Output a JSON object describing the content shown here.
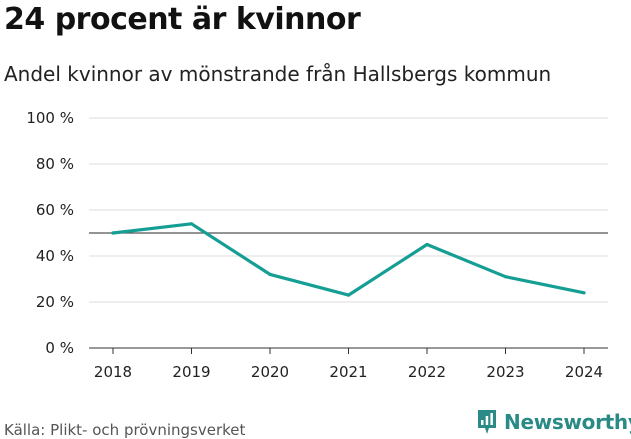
{
  "title": "24 procent är kvinnor",
  "subtitle": "Andel kvinnor av mönstrande från Hallsbergs kommun",
  "source": "Källa: Plikt- och prövningsverket",
  "brand": {
    "name": "Newsworthy",
    "icon": "newsworthy-logo-icon",
    "color": "#2a8a86"
  },
  "chart_data": {
    "type": "line",
    "title": "24 procent är kvinnor",
    "subtitle": "Andel kvinnor av mönstrande från Hallsbergs kommun",
    "xlabel": "",
    "ylabel": "",
    "categories": [
      "2018",
      "2019",
      "2020",
      "2021",
      "2022",
      "2023",
      "2024"
    ],
    "series": [
      {
        "name": "Andel kvinnor",
        "values": [
          50,
          54,
          32,
          23,
          45,
          31,
          24
        ],
        "color": "#159e94"
      }
    ],
    "reference_line": {
      "value": 50,
      "color": "#555555"
    },
    "ylim": [
      0,
      100
    ],
    "yticks": [
      0,
      20,
      40,
      60,
      80,
      100
    ],
    "ytick_labels": [
      "0 %",
      "20 %",
      "40 %",
      "60 %",
      "80 %",
      "100 %"
    ],
    "grid": true
  }
}
